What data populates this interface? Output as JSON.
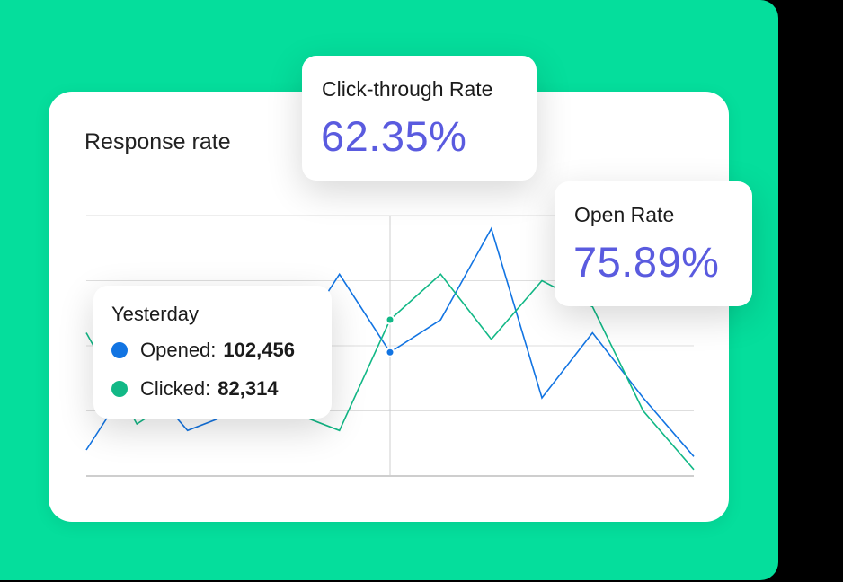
{
  "colors": {
    "background_panel": "#05DE9C",
    "accent": "#5A5BDF",
    "opened_series": "#1274E2",
    "clicked_series": "#12B886"
  },
  "chart_card": {
    "title": "Response rate"
  },
  "metrics": {
    "click_through": {
      "label": "Click-through Rate",
      "value": "62.35%"
    },
    "open_rate": {
      "label": "Open Rate",
      "value": "75.89%"
    }
  },
  "tooltip": {
    "title": "Yesterday",
    "opened": {
      "label": "Opened:",
      "value": "102,456"
    },
    "clicked": {
      "label": "Clicked:",
      "value": "82,314"
    }
  },
  "chart_data": {
    "type": "line",
    "title": "Response rate",
    "xlabel": "",
    "ylabel": "",
    "x": [
      0,
      1,
      2,
      3,
      4,
      5,
      6,
      7,
      8,
      9,
      10,
      11,
      12
    ],
    "ylim": [
      0,
      4
    ],
    "grid": true,
    "legend": "tooltip",
    "highlight_index": 6,
    "series": [
      {
        "name": "Opened",
        "color": "#1274E2",
        "values": [
          0.4,
          1.6,
          0.7,
          1.0,
          1.9,
          3.1,
          1.9,
          2.4,
          3.8,
          1.2,
          2.2,
          1.2,
          0.3
        ]
      },
      {
        "name": "Clicked",
        "color": "#12B886",
        "values": [
          2.2,
          0.8,
          1.3,
          0.9,
          1.0,
          0.7,
          2.4,
          3.1,
          2.1,
          3.0,
          2.6,
          1.0,
          0.1
        ]
      }
    ]
  }
}
